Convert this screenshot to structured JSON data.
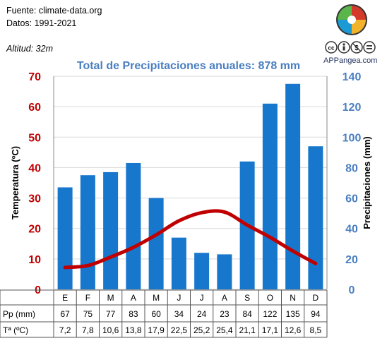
{
  "header": {
    "source": "Fuente: climate-data.org",
    "period": "Datos: 1991-2021",
    "altitude": "Altitud: 32m",
    "brand": "APPangea.com"
  },
  "colors": {
    "bars": "#1777cc",
    "temperature_line": "#c00000",
    "left_axis": "#c00000",
    "right_axis": "#4a7fc1",
    "title": "#4a7fc1"
  },
  "icons": [
    "appangea-logo-icon",
    "creative-commons-icon",
    "by-attribution-icon",
    "non-commercial-icon",
    "no-derivatives-icon"
  ],
  "table": {
    "pp_label": "Pp (mm)",
    "t_label": "Tª (ºC)",
    "pp_values": [
      "67",
      "75",
      "77",
      "83",
      "60",
      "34",
      "24",
      "23",
      "84",
      "122",
      "135",
      "94"
    ],
    "t_values": [
      "7,2",
      "7,8",
      "10,6",
      "13,8",
      "17,9",
      "22,5",
      "25,2",
      "25,4",
      "21,1",
      "17,1",
      "12,6",
      "8,5"
    ]
  },
  "chart_data": {
    "type": "bar",
    "title": "Total de Precipitaciones anuales: 878 mm",
    "categories": [
      "E",
      "F",
      "M",
      "A",
      "M",
      "J",
      "J",
      "A",
      "S",
      "O",
      "N",
      "D"
    ],
    "y_left": {
      "label": "Temperatura (ºC)",
      "range": [
        0,
        70
      ],
      "ticks": [
        "0",
        "10",
        "20",
        "30",
        "40",
        "50",
        "60",
        "70"
      ]
    },
    "y_right": {
      "label": "Precipitaciones (mm)",
      "range": [
        0,
        140
      ],
      "ticks": [
        "0",
        "20",
        "40",
        "60",
        "80",
        "100",
        "120",
        "140"
      ]
    },
    "series": [
      {
        "type": "bar",
        "axis": "right",
        "values": [
          67,
          75,
          77,
          83,
          60,
          34,
          24,
          23,
          84,
          122,
          135,
          94
        ]
      },
      {
        "type": "line",
        "axis": "left",
        "values": [
          7.2,
          7.8,
          10.6,
          13.8,
          17.9,
          22.5,
          25.2,
          25.4,
          21.1,
          17.1,
          12.6,
          8.5
        ]
      }
    ],
    "grid": true
  }
}
